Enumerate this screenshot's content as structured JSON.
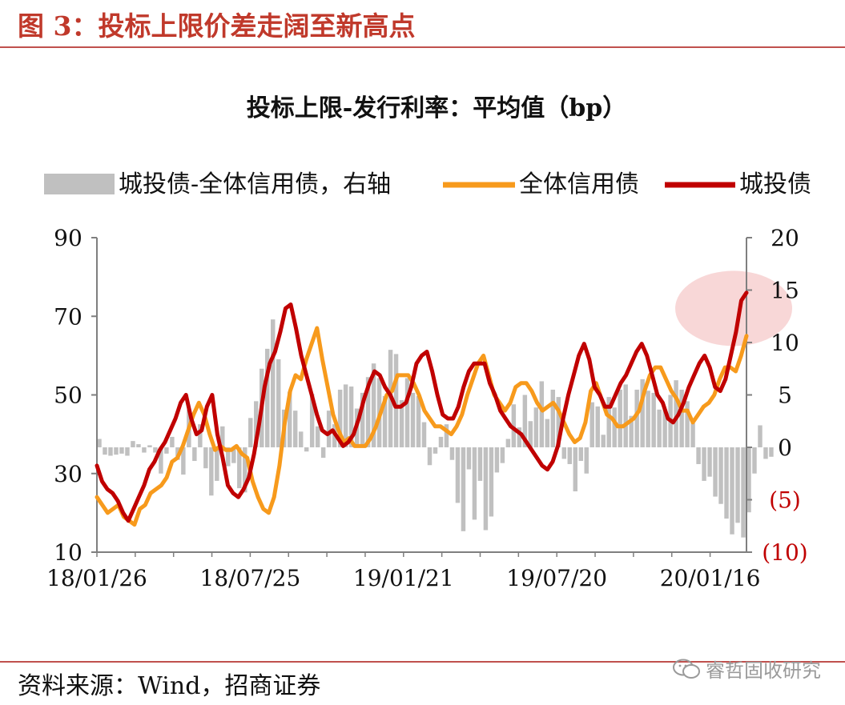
{
  "figure": {
    "title": "图 3：投标上限价差走阔至新高点",
    "source": "资料来源：Wind，招商证券",
    "watermark": "睿哲固收研究"
  },
  "chart_data": {
    "type": "bar+line",
    "title": "投标上限-发行利率：平均值（bp）",
    "legend": [
      {
        "name": "城投债-全体信用债，右轴",
        "color": "#c0c0c0",
        "kind": "bar"
      },
      {
        "name": "全体信用债",
        "color": "#f79a1c",
        "kind": "line"
      },
      {
        "name": "城投债",
        "color": "#c00000",
        "kind": "line"
      }
    ],
    "legend_position": "top",
    "x_tick_labels": [
      "18/01/26",
      "18/07/25",
      "19/01/21",
      "19/07/20",
      "20/01/16"
    ],
    "left_axis": {
      "min": 10,
      "max": 90,
      "ticks": [
        "90",
        "70",
        "50",
        "30",
        "10"
      ]
    },
    "right_axis": {
      "min": -10,
      "max": 20,
      "ticks": [
        "20",
        "15",
        "10",
        "5",
        "0",
        "(5)",
        "(10)"
      ],
      "negative_color": "#c00000"
    },
    "grid": false,
    "annotation": {
      "kind": "highlight-circle",
      "color": "#f4c2c2",
      "near_x_week": 112,
      "near_left_value": 72
    },
    "x_weeks_total": 116,
    "bar_diff_right_axis": [
      0.8,
      -0.7,
      -0.8,
      -0.7,
      -0.6,
      -0.8,
      0.6,
      0.3,
      -0.5,
      0.2,
      -0.5,
      -2.5,
      -0.6,
      1,
      -1.2,
      -2.6,
      3.6,
      -1.3,
      2.2,
      -2,
      -4.6,
      -3.2,
      2,
      -1.8,
      -1.5,
      -3.9,
      -4.3,
      2.8,
      4.4,
      7.5,
      9.4,
      12.2,
      8.4,
      3.6,
      5.3,
      3.5,
      1.5,
      -0.4,
      5.1,
      2,
      -1,
      3.5,
      2.2,
      5.5,
      6,
      5.8,
      3.7,
      5.2,
      6.7,
      8,
      6.6,
      4.9,
      9.3,
      8.9,
      4.5,
      6.6,
      5.2,
      4.9,
      2.4,
      -1.7,
      -0.6,
      1,
      2.2,
      -1.2,
      -5.3,
      -8,
      -2.1,
      -6.9,
      -3.2,
      -7.9,
      -6.6,
      -2.4,
      -1.5,
      0.8,
      4.1,
      1.9,
      5,
      2.5,
      3.8,
      6.3,
      2.7,
      5.5,
      4.8,
      -1.1,
      -1.6,
      -4.2,
      -1.3,
      -2.5,
      4.3,
      3.9,
      1.2,
      4.8,
      3.8,
      5.5,
      6,
      3,
      5.5,
      6.5,
      5.4,
      5.2,
      3.6,
      3.6,
      5,
      6.4,
      5.5,
      4.4,
      2.3,
      -1.6,
      -3.2,
      -2.8,
      -4.7,
      -5.4,
      -6.8,
      -8.3,
      -7.2,
      -8.6,
      -6.2,
      -2.5,
      2.1,
      -1.1,
      -0.9
    ],
    "series": [
      {
        "name": "全体信用债",
        "values": [
          24,
          22,
          20,
          21,
          22,
          19,
          18,
          17,
          21,
          22,
          25,
          26,
          27,
          29,
          33,
          34,
          37,
          41,
          45,
          48,
          45,
          40,
          36,
          37,
          36,
          36,
          37,
          35,
          34,
          28,
          24,
          21,
          20,
          24,
          32,
          43,
          51,
          55,
          54,
          59,
          63,
          67,
          59,
          52,
          45,
          41,
          38,
          39,
          37,
          37,
          37,
          39,
          42,
          46,
          50,
          51,
          55,
          55,
          55,
          53,
          50,
          46,
          44,
          42,
          42,
          41,
          40,
          42,
          45,
          50,
          54,
          58,
          60,
          55,
          50,
          48,
          46,
          48,
          52,
          53,
          53,
          51,
          48,
          46,
          47,
          48,
          46,
          43,
          40,
          38,
          39,
          43,
          51,
          53,
          49,
          45,
          44,
          42,
          42,
          43,
          44,
          46,
          51,
          55,
          57,
          57,
          54,
          51,
          49,
          46,
          46,
          43,
          45,
          47,
          48,
          50,
          54,
          57,
          57,
          56,
          60,
          65
        ]
      },
      {
        "name": "城投债",
        "values": [
          32,
          28,
          26,
          25,
          23,
          20,
          18,
          21,
          24,
          27,
          31,
          33,
          36,
          38,
          41,
          44,
          48,
          50,
          44,
          40,
          41,
          47,
          50,
          40,
          34,
          27,
          25,
          24,
          26,
          29,
          35,
          43,
          52,
          58,
          61,
          66,
          72,
          73,
          67,
          60,
          55,
          50,
          45,
          41,
          40,
          41,
          39,
          37,
          38,
          40,
          44,
          49,
          53,
          56,
          55,
          52,
          50,
          47,
          47,
          48,
          52,
          58,
          60,
          61,
          56,
          50,
          45,
          44,
          44,
          47,
          52,
          56,
          58,
          58,
          58,
          53,
          50,
          46,
          44,
          42,
          41,
          40,
          38,
          36,
          34,
          32,
          31,
          33,
          37,
          44,
          50,
          55,
          60,
          63,
          59,
          52,
          50,
          47,
          47,
          50,
          53,
          55,
          58,
          61,
          63,
          60,
          55,
          50,
          48,
          44,
          43,
          45,
          48,
          52,
          55,
          58,
          60,
          57,
          52,
          51,
          54,
          60,
          66,
          74,
          76
        ]
      }
    ]
  }
}
